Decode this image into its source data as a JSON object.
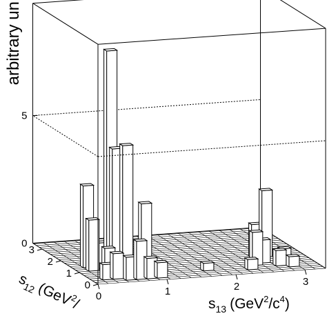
{
  "chart_data": {
    "type": "lego3d",
    "title": "",
    "zlabel": "arbitrary un",
    "xlabel": {
      "main": "s",
      "sub": "13",
      "unit_pre": "(GeV",
      "sup1": "2",
      "unit_mid": "/c",
      "sup2": "4",
      "unit_post": ")"
    },
    "ylabel": {
      "main": "s",
      "sub": "12",
      "unit_pre": "(GeV",
      "sup1": "2",
      "unit_post": "/"
    },
    "x_ticks": [
      "0",
      "1",
      "2",
      "3"
    ],
    "y_ticks": [
      "0",
      "1",
      "2",
      "3"
    ],
    "z_ticks": [
      "0",
      "5"
    ],
    "xlim": [
      0,
      3.3
    ],
    "ylim": [
      0,
      3.5
    ],
    "zlim": [
      0,
      9.4
    ],
    "bin_width": 0.15,
    "bars": [
      {
        "x": 0.15,
        "y": 1.35,
        "z": 3.2
      },
      {
        "x": 0.15,
        "y": 0.3,
        "z": 0.6
      },
      {
        "x": 0.3,
        "y": 0.3,
        "z": 1.0
      },
      {
        "x": 0.15,
        "y": 1.05,
        "z": 2.0
      },
      {
        "x": 0.3,
        "y": 0.75,
        "z": 1.0
      },
      {
        "x": 0.3,
        "y": 1.2,
        "z": 1.0
      },
      {
        "x": 0.45,
        "y": 1.2,
        "z": 8.5
      },
      {
        "x": 0.45,
        "y": 0.9,
        "z": 4.8
      },
      {
        "x": 0.6,
        "y": 0.9,
        "z": 4.9
      },
      {
        "x": 0.45,
        "y": 0.15,
        "z": 0.9
      },
      {
        "x": 0.6,
        "y": 0.15,
        "z": 1.5
      },
      {
        "x": 0.75,
        "y": 0.45,
        "z": 2.8
      },
      {
        "x": 0.75,
        "y": 0.15,
        "z": 0.8
      },
      {
        "x": 0.9,
        "y": 0.15,
        "z": 0.6
      },
      {
        "x": 2.7,
        "y": 1.2,
        "z": 2.6
      },
      {
        "x": 2.55,
        "y": 1.2,
        "z": 1.3
      },
      {
        "x": 2.55,
        "y": 0.75,
        "z": 0.9
      },
      {
        "x": 2.4,
        "y": 0.6,
        "z": 1.3
      },
      {
        "x": 2.7,
        "y": 0.45,
        "z": 0.6
      },
      {
        "x": 2.85,
        "y": 0.75,
        "z": 0.5
      },
      {
        "x": 2.85,
        "y": 0.3,
        "z": 0.4
      },
      {
        "x": 2.25,
        "y": 0.3,
        "z": 0.4
      },
      {
        "x": 1.65,
        "y": 0.45,
        "z": 0.3
      }
    ]
  }
}
